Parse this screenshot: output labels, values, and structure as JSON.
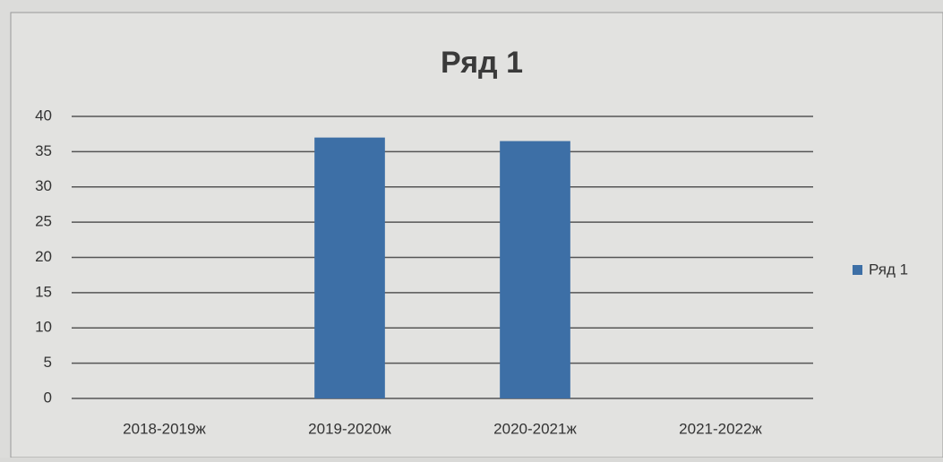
{
  "chart_data": {
    "type": "bar",
    "title": "Ряд 1",
    "categories": [
      "2018-2019ж",
      "2019-2020ж",
      "2020-2021ж",
      "2021-2022ж"
    ],
    "series": [
      {
        "name": "Ряд 1",
        "color": "#3d6fa6",
        "values": [
          null,
          37,
          36.5,
          null
        ]
      }
    ],
    "ylim": [
      0,
      40
    ],
    "yticks": [
      0,
      5,
      10,
      15,
      20,
      25,
      30,
      35,
      40
    ],
    "grid": true,
    "legend": "right"
  }
}
